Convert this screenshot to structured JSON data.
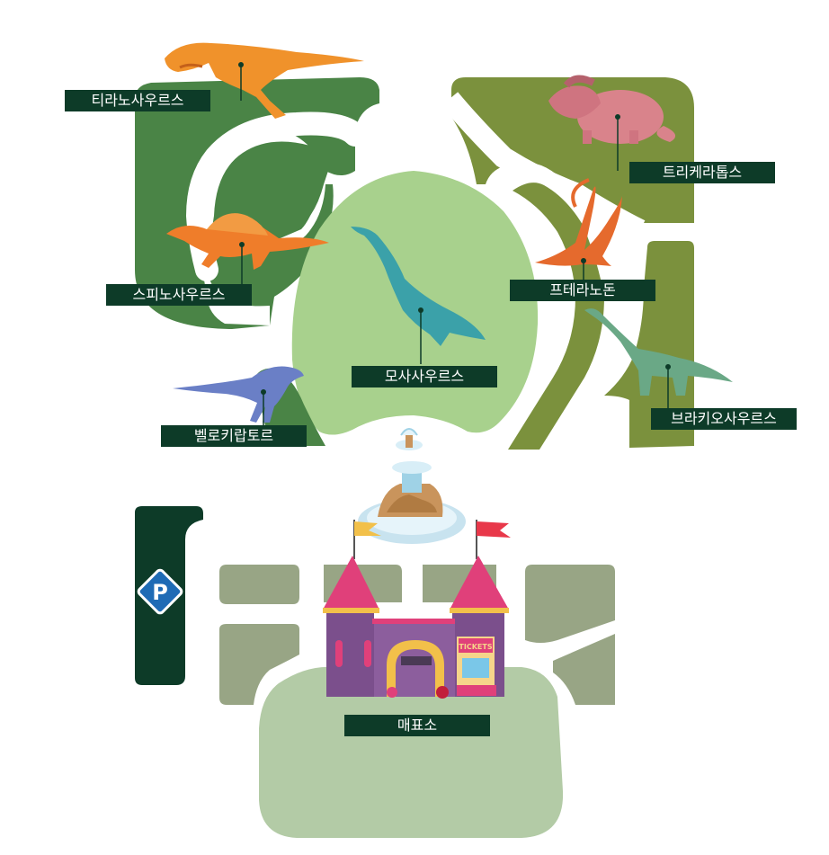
{
  "map": {
    "zones": [
      {
        "id": "tyrannosaurus",
        "label": "티라노사우르스",
        "dino_icon": "tyrannosaurus-icon"
      },
      {
        "id": "triceratops",
        "label": "트리케라톱스",
        "dino_icon": "triceratops-icon"
      },
      {
        "id": "spinosaurus",
        "label": "스피노사우르스",
        "dino_icon": "spinosaurus-icon"
      },
      {
        "id": "mosasaurus",
        "label": "모사사우르스",
        "dino_icon": "mosasaurus-icon"
      },
      {
        "id": "pteranodon",
        "label": "프테라노돈",
        "dino_icon": "pteranodon-icon"
      },
      {
        "id": "velociraptor",
        "label": "벨로키랍토르",
        "dino_icon": "velociraptor-icon"
      },
      {
        "id": "brachiosaurus",
        "label": "브라키오사우르스",
        "dino_icon": "brachiosaurus-icon"
      }
    ],
    "ticket_office": {
      "label": "매표소",
      "booth_sign": "TICKETS"
    },
    "parking": {
      "symbol": "P"
    },
    "colors": {
      "dark_green": "#4a8446",
      "olive_green": "#7b913d",
      "light_green": "#a8d18d",
      "pale_green": "#b3cba6",
      "gray_green": "#98a585",
      "parking_green": "#0d3b28",
      "label_bg": "#0d3b28",
      "castle_purple": "#7b4f8c",
      "roof_pink": "#e0407a"
    }
  }
}
